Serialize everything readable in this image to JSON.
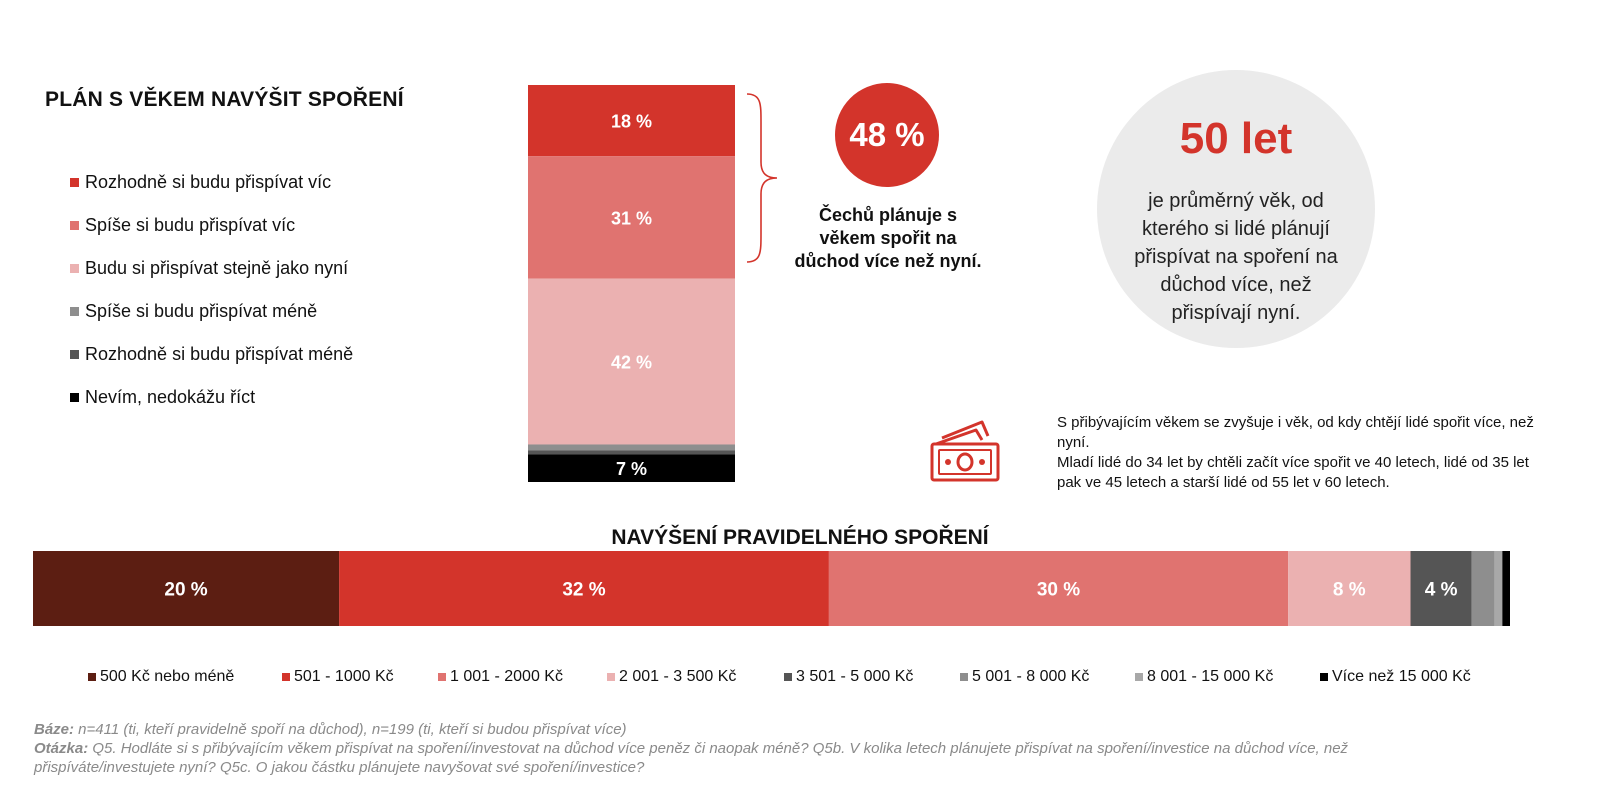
{
  "colors": {
    "dark_red": "#5c1e12",
    "red": "#d3342b",
    "mid_red": "#e07370",
    "light_pink": "#ebb1b1",
    "gray1": "#8e8e8e",
    "gray2": "#555555",
    "black": "#000000",
    "light_gray": "#a8a8a8",
    "circle_bg": "#ebebeb"
  },
  "left_section": {
    "title": "PLÁN S VĚKEM NAVÝŠIT SPOŘENÍ",
    "legend": [
      {
        "label": "Rozhodně si budu přispívat víc",
        "color": "#d3342b"
      },
      {
        "label": "Spíše si budu přispívat víc",
        "color": "#e07370"
      },
      {
        "label": "Budu si přispívat stejně jako nyní",
        "color": "#ebb1b1"
      },
      {
        "label": "Spíše si budu přispívat méně",
        "color": "#8e8e8e"
      },
      {
        "label": "Rozhodně si budu přispívat méně",
        "color": "#555555"
      },
      {
        "label": "Nevím, nedokážu říct",
        "color": "#000000"
      }
    ]
  },
  "highlight": {
    "value": "48 %",
    "text": "Čechů plánuje s věkem spořit na důchod více než nyní."
  },
  "circle": {
    "value": "50 let",
    "text": "je průměrný věk, od kterého si lidé plánují přispívat na spoření na důchod více, než přispívají nyní."
  },
  "note": {
    "line1": "S přibývajícím věkem se zvyšuje i věk, od kdy chtějí lidé spořit více, než nyní.",
    "line2": "Mladí lidé do 34 let by chtěli začít více spořit ve 40 letech, lidé od 35 let pak ve 45 letech a starší lidé od 55 let v 60 letech."
  },
  "icons": {
    "money": "money-bills-icon"
  },
  "bottom_section": {
    "title": "NAVÝŠENÍ PRAVIDELNÉHO SPOŘENÍ",
    "legend": [
      {
        "label": "500 Kč nebo méně",
        "color": "#5c1e12"
      },
      {
        "label": "501 - 1000 Kč",
        "color": "#d3342b"
      },
      {
        "label": "1 001 - 2000 Kč",
        "color": "#e07370"
      },
      {
        "label": "2 001 - 3 500 Kč",
        "color": "#ebb1b1"
      },
      {
        "label": "3 501 - 5 000 Kč",
        "color": "#555555"
      },
      {
        "label": "5 001 - 8 000 Kč",
        "color": "#8e8e8e"
      },
      {
        "label": "8 001 - 15 000 Kč",
        "color": "#a8a8a8"
      },
      {
        "label": "Více než 15 000 Kč",
        "color": "#000000"
      }
    ]
  },
  "footer": {
    "base_label": "Báze:",
    "base_text": " n=411 (ti, kteří pravidelně spoří na důchod), n=199 (ti, kteří si budou přispívat více)",
    "question_label": "Otázka:",
    "question_text": " Q5. Hodláte si s přibývajícím věkem přispívat na spoření/investovat na důchod více peněz či naopak méně? Q5b. V kolika letech plánujete přispívat na spoření/investice na důchod více, než přispíváte/investujete nyní? Q5c. O jakou částku plánujete navyšovat své spoření/investice?"
  },
  "chart_data": [
    {
      "type": "bar",
      "stacked": true,
      "orientation": "vertical",
      "title": "PLÁN S VĚKEM NAVÝŠIT SPOŘENÍ",
      "series": [
        {
          "name": "Rozhodně si budu přispívat víc",
          "value": 18,
          "label": "18 %",
          "color": "#d3342b"
        },
        {
          "name": "Spíše si budu přispívat víc",
          "value": 31,
          "label": "31 %",
          "color": "#e07370"
        },
        {
          "name": "Budu si přispívat stejně jako nyní",
          "value": 42,
          "label": "42 %",
          "color": "#ebb1b1"
        },
        {
          "name": "Spíše si budu přispívat méně",
          "value": 1.5,
          "label": "",
          "color": "#8e8e8e"
        },
        {
          "name": "Rozhodně si budu přispívat méně",
          "value": 1,
          "label": "",
          "color": "#555555"
        },
        {
          "name": "Nevím, nedokážu říct",
          "value": 7,
          "label": "7 %",
          "color": "#000000"
        }
      ]
    },
    {
      "type": "bar",
      "stacked": true,
      "orientation": "horizontal",
      "title": "NAVÝŠENÍ PRAVIDELNÉHO SPOŘENÍ",
      "series": [
        {
          "name": "500 Kč nebo méně",
          "value": 20,
          "label": "20 %",
          "color": "#5c1e12"
        },
        {
          "name": "501 - 1000 Kč",
          "value": 32,
          "label": "32 %",
          "color": "#d3342b"
        },
        {
          "name": "1 001 - 2000 Kč",
          "value": 30,
          "label": "30 %",
          "color": "#e07370"
        },
        {
          "name": "2 001 - 3 500 Kč",
          "value": 8,
          "label": "8 %",
          "color": "#ebb1b1"
        },
        {
          "name": "3 501 - 5 000 Kč",
          "value": 4,
          "label": "4 %",
          "color": "#555555"
        },
        {
          "name": "5 001 - 8 000 Kč",
          "value": 1.5,
          "label": "",
          "color": "#8e8e8e"
        },
        {
          "name": "8 001 - 15 000 Kč",
          "value": 0.5,
          "label": "",
          "color": "#a8a8a8"
        },
        {
          "name": "Více než 15 000 Kč",
          "value": 0.5,
          "label": "",
          "color": "#000000"
        }
      ]
    }
  ]
}
